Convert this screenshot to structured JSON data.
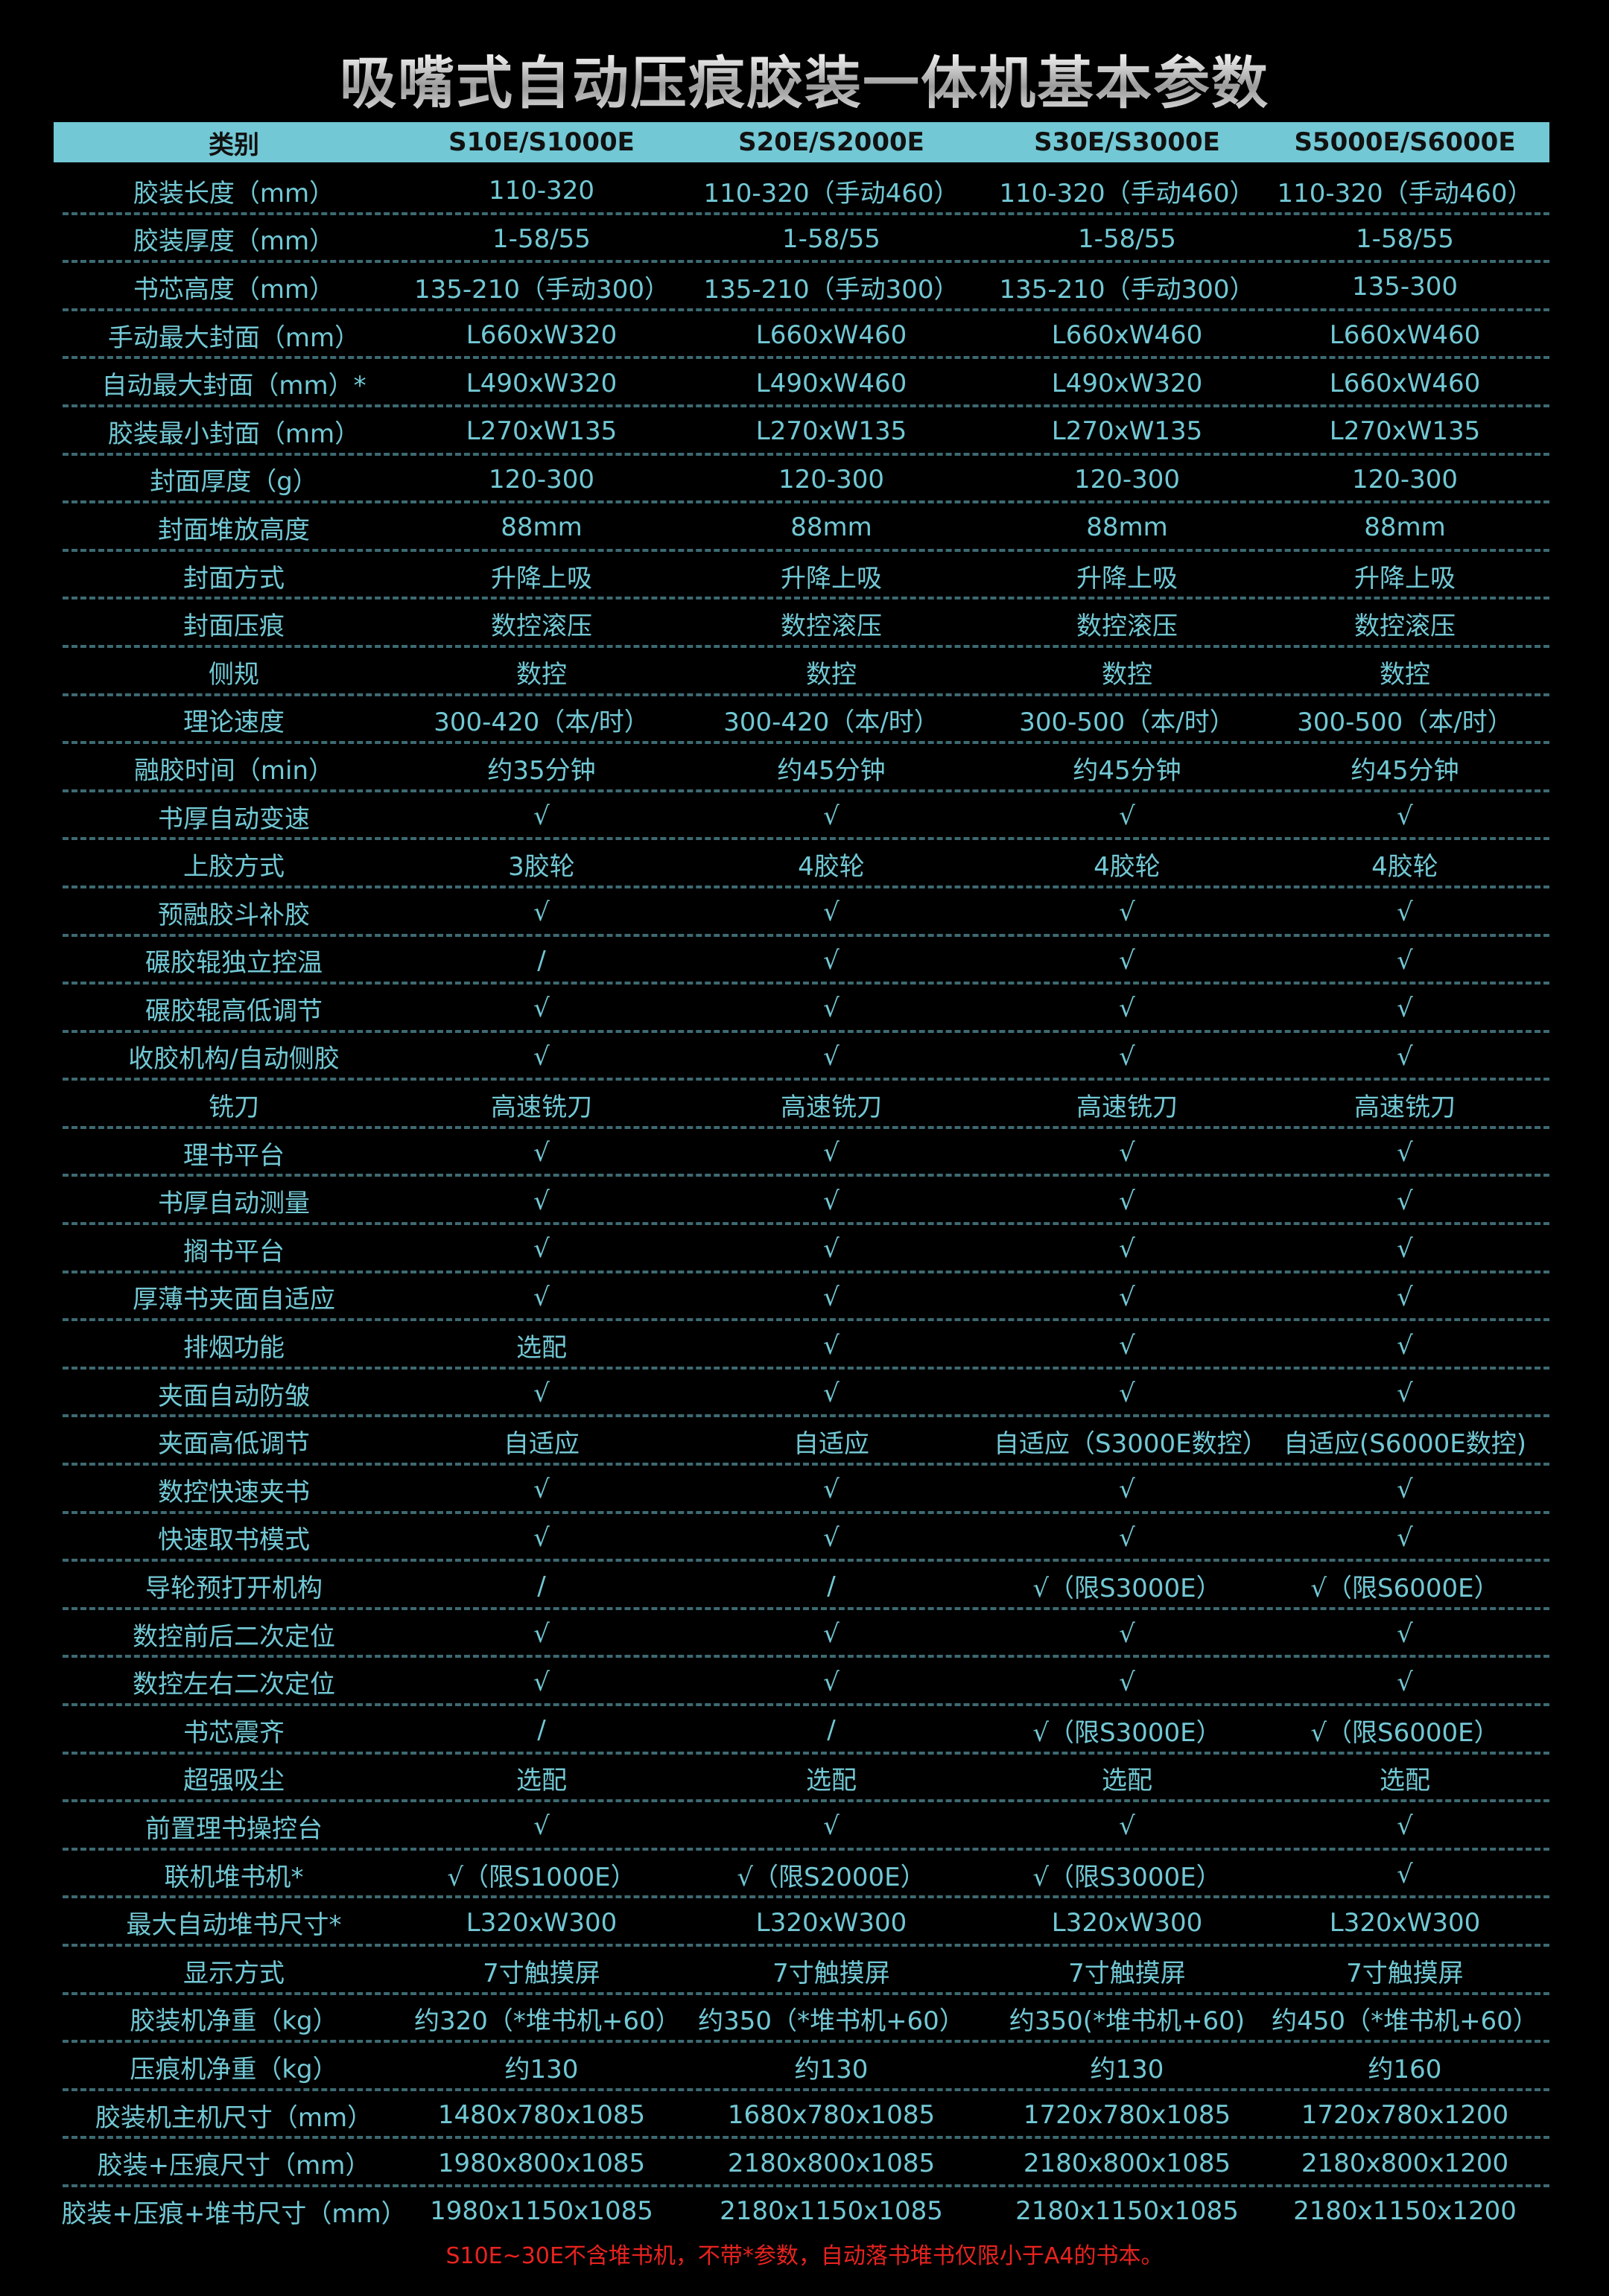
{
  "title": "吸嘴式自动压痕胶装一体机基本参数",
  "colors": {
    "accent": "#72c8d4",
    "note": "#e8231f",
    "background": "#000000"
  },
  "header": [
    "类别",
    "S10E/S1000E",
    "S20E/S2000E",
    "S30E/S3000E",
    "S5000E/S6000E"
  ],
  "rows": [
    [
      "胶装长度（mm）",
      "110-320",
      "110-320（手动460）",
      "110-320（手动460）",
      "110-320（手动460）"
    ],
    [
      "胶装厚度（mm）",
      "1-58/55",
      "1-58/55",
      "1-58/55",
      "1-58/55"
    ],
    [
      "书芯高度（mm）",
      "135-210（手动300）",
      "135-210（手动300）",
      "135-210（手动300）",
      "135-300"
    ],
    [
      "手动最大封面（mm）",
      "L660xW320",
      "L660xW460",
      "L660xW460",
      "L660xW460"
    ],
    [
      "自动最大封面（mm）*",
      "L490xW320",
      "L490xW460",
      "L490xW320",
      "L660xW460"
    ],
    [
      "胶装最小封面（mm）",
      "L270xW135",
      "L270xW135",
      "L270xW135",
      "L270xW135"
    ],
    [
      "封面厚度（g）",
      "120-300",
      "120-300",
      "120-300",
      "120-300"
    ],
    [
      "封面堆放高度",
      "88mm",
      "88mm",
      "88mm",
      "88mm"
    ],
    [
      "封面方式",
      "升降上吸",
      "升降上吸",
      "升降上吸",
      "升降上吸"
    ],
    [
      "封面压痕",
      "数控滚压",
      "数控滚压",
      "数控滚压",
      "数控滚压"
    ],
    [
      "侧规",
      "数控",
      "数控",
      "数控",
      "数控"
    ],
    [
      "理论速度",
      "300-420（本/时）",
      "300-420（本/时）",
      "300-500（本/时）",
      "300-500（本/时）"
    ],
    [
      "融胶时间（min）",
      "约35分钟",
      "约45分钟",
      "约45分钟",
      "约45分钟"
    ],
    [
      "书厚自动变速",
      "√",
      "√",
      "√",
      "√"
    ],
    [
      "上胶方式",
      "3胶轮",
      "4胶轮",
      "4胶轮",
      "4胶轮"
    ],
    [
      "预融胶斗补胶",
      "√",
      "√",
      "√",
      "√"
    ],
    [
      "碾胶辊独立控温",
      "/",
      "√",
      "√",
      "√"
    ],
    [
      "碾胶辊高低调节",
      "√",
      "√",
      "√",
      "√"
    ],
    [
      "收胶机构/自动侧胶",
      "√",
      "√",
      "√",
      "√"
    ],
    [
      "铣刀",
      "高速铣刀",
      "高速铣刀",
      "高速铣刀",
      "高速铣刀"
    ],
    [
      "理书平台",
      "√",
      "√",
      "√",
      "√"
    ],
    [
      "书厚自动测量",
      "√",
      "√",
      "√",
      "√"
    ],
    [
      "搁书平台",
      "√",
      "√",
      "√",
      "√"
    ],
    [
      "厚薄书夹面自适应",
      "√",
      "√",
      "√",
      "√"
    ],
    [
      "排烟功能",
      "选配",
      "√",
      "√",
      "√"
    ],
    [
      "夹面自动防皱",
      "√",
      "√",
      "√",
      "√"
    ],
    [
      "夹面高低调节",
      "自适应",
      "自适应",
      "自适应（S3000E数控）",
      "自适应(S6000E数控)"
    ],
    [
      "数控快速夹书",
      "√",
      "√",
      "√",
      "√"
    ],
    [
      "快速取书模式",
      "√",
      "√",
      "√",
      "√"
    ],
    [
      "导轮预打开机构",
      "/",
      "/",
      "√（限S3000E）",
      "√（限S6000E）"
    ],
    [
      "数控前后二次定位",
      "√",
      "√",
      "√",
      "√"
    ],
    [
      "数控左右二次定位",
      "√",
      "√",
      "√",
      "√"
    ],
    [
      "书芯震齐",
      "/",
      "/",
      "√（限S3000E）",
      "√（限S6000E）"
    ],
    [
      "超强吸尘",
      "选配",
      "选配",
      "选配",
      "选配"
    ],
    [
      "前置理书操控台",
      "√",
      "√",
      "√",
      "√"
    ],
    [
      "联机堆书机*",
      "√（限S1000E）",
      "√（限S2000E）",
      "√（限S3000E）",
      "√"
    ],
    [
      "最大自动堆书尺寸*",
      "L320xW300",
      "L320xW300",
      "L320xW300",
      "L320xW300"
    ],
    [
      "显示方式",
      "7寸触摸屏",
      "7寸触摸屏",
      "7寸触摸屏",
      "7寸触摸屏"
    ],
    [
      "胶装机净重（kg）",
      "约320（*堆书机+60）",
      "约350（*堆书机+60）",
      "约350(*堆书机+60)",
      "约450（*堆书机+60）"
    ],
    [
      "压痕机净重（kg）",
      "约130",
      "约130",
      "约130",
      "约160"
    ],
    [
      "胶装机主机尺寸（mm）",
      "1480x780x1085",
      "1680x780x1085",
      "1720x780x1085",
      "1720x780x1200"
    ],
    [
      "胶装+压痕尺寸（mm）",
      "1980x800x1085",
      "2180x800x1085",
      "2180x800x1085",
      "2180x800x1200"
    ],
    [
      "胶装+压痕+堆书尺寸（mm）",
      "1980x1150x1085",
      "2180x1150x1085",
      "2180x1150x1085",
      "2180x1150x1200"
    ]
  ],
  "footnote": "S10E~30E不含堆书机，不带*参数，自动落书堆书仅限小于A4的书本。"
}
